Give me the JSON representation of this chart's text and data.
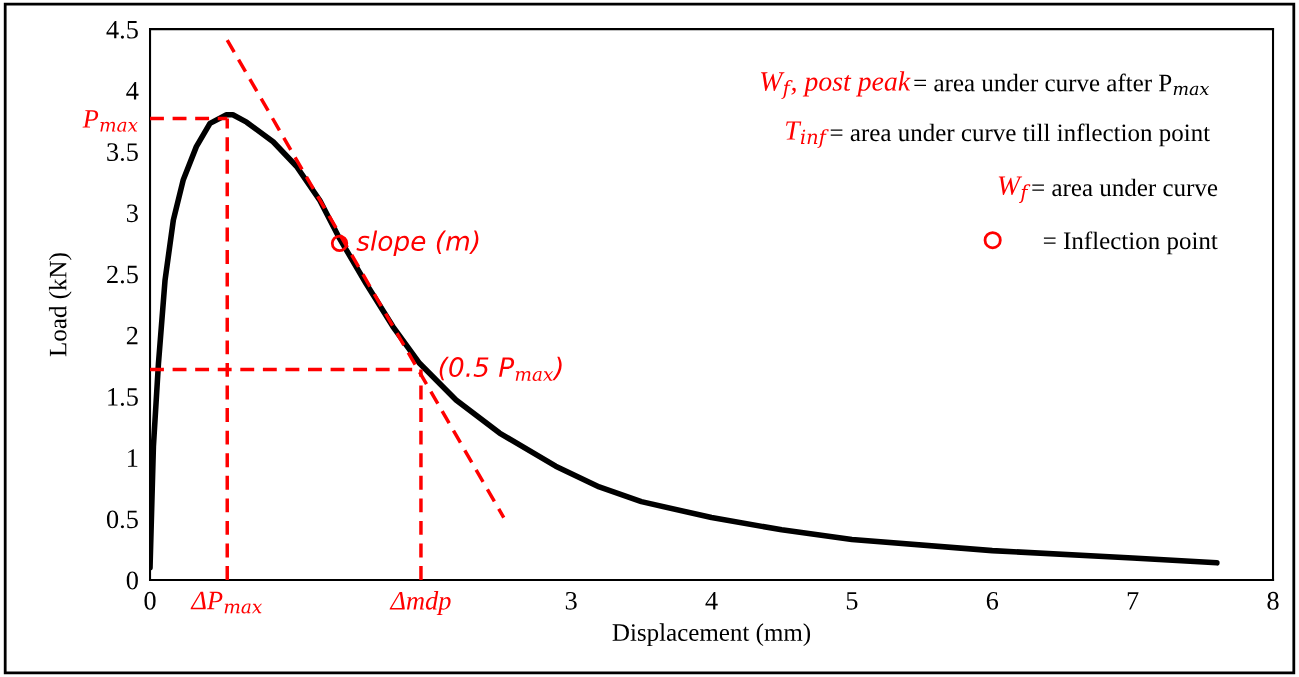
{
  "chart_data": {
    "type": "line",
    "xlabel": "Displacement (mm)",
    "ylabel": "Load (kN)",
    "xlim": [
      0,
      8
    ],
    "ylim": [
      0,
      4.5
    ],
    "xticks": [
      0,
      {
        "value": 0.55,
        "label": "ΔP$_{max}$"
      },
      {
        "value": 1.93,
        "label": "Δmdp"
      },
      3,
      4,
      5,
      6,
      7,
      8
    ],
    "yticks": [
      0,
      0.5,
      1,
      1.5,
      2,
      2.5,
      3,
      3.5,
      4,
      4.5,
      {
        "value": 3.77,
        "label": "P$_{max}$"
      }
    ],
    "grid": false,
    "legend": "top right",
    "series": [
      {
        "color": "#000000",
        "x": [
          0,
          0.024,
          0.06,
          0.107,
          0.166,
          0.237,
          0.33,
          0.427,
          0.545,
          0.59,
          0.688,
          0.877,
          1.043,
          1.21,
          1.35,
          1.54,
          1.73,
          1.92,
          2.18,
          2.49,
          2.89,
          3.2,
          3.5,
          4,
          4.5,
          5,
          6,
          7,
          7.6
        ],
        "values": [
          0.1,
          1.09,
          1.77,
          2.45,
          2.94,
          3.27,
          3.54,
          3.73,
          3.8,
          3.8,
          3.74,
          3.58,
          3.38,
          3.1,
          2.79,
          2.42,
          2.07,
          1.77,
          1.47,
          1.2,
          0.93,
          0.76,
          0.64,
          0.51,
          0.41,
          0.33,
          0.24,
          0.18,
          0.14
        ]
      },
      {
        "color": "#ff0000",
        "line_style": "dashed",
        "x": [
          0.55,
          2.52
        ],
        "values": [
          4.41,
          0.51
        ]
      },
      {
        "type": "line",
        "color": "#ff0000",
        "line_style": "dashed",
        "x": [
          0,
          0.55
        ],
        "values": [
          3.77,
          3.77
        ]
      },
      {
        "type": "line",
        "color": "#ff0000",
        "line_style": "dashed",
        "x": [
          0.55,
          0.55
        ],
        "values": [
          0,
          3.77
        ]
      },
      {
        "type": "line",
        "color": "#ff0000",
        "line_style": "dashed",
        "x": [
          0,
          1.93
        ],
        "values": [
          1.72,
          1.72
        ]
      },
      {
        "type": "line",
        "color": "#ff0000",
        "line_style": "dashed",
        "x": [
          1.93,
          1.93
        ],
        "values": [
          0,
          1.72
        ]
      },
      {
        "type": "scatter",
        "name": "= Inflection point",
        "color": "#ff0000",
        "marker": "circle",
        "x": [
          1.35
        ],
        "values": [
          2.75
        ]
      }
    ],
    "annotations": [
      "W$_{f}$, post peak",
      "= area under curve after P$_{max}$",
      "T$_{inf}$",
      "= area under curve till inflection point",
      "W$_{f}$",
      "= area under curve",
      {
        "text": "slope (m)",
        "x": 1.35,
        "y": 2.75
      },
      {
        "text": "(0.5 P$_{max}$)",
        "x": 1.93,
        "y": 1.72
      }
    ]
  }
}
